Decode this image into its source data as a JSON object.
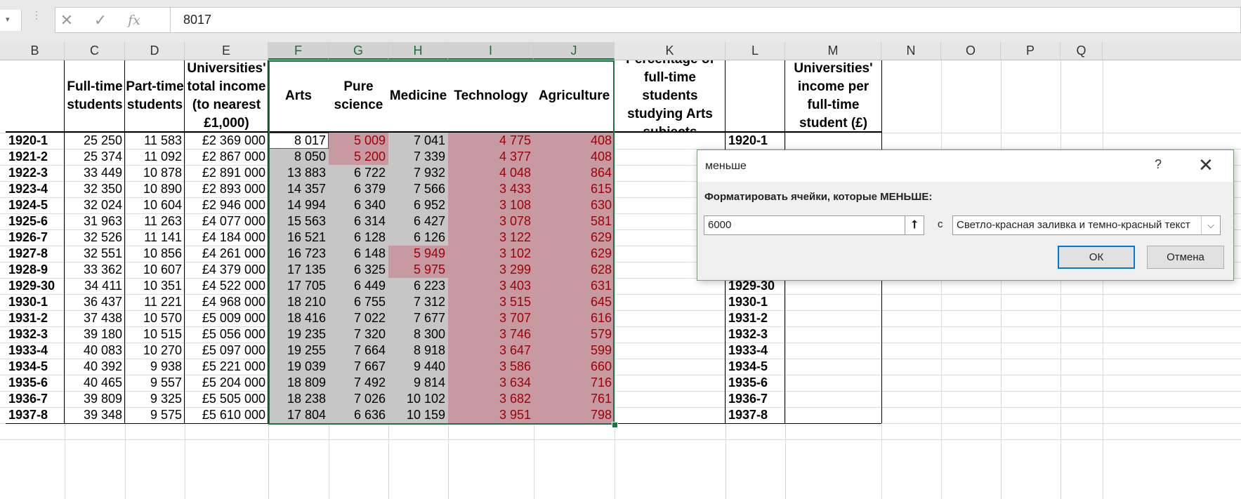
{
  "formula_bar": {
    "dots": "⋮",
    "cancel_glyph": "✕",
    "enter_glyph": "✓",
    "fx_glyph": "fx",
    "value": "8017"
  },
  "columns": [
    "B",
    "C",
    "D",
    "E",
    "F",
    "G",
    "H",
    "I",
    "J",
    "K",
    "L",
    "M",
    "N",
    "O",
    "P",
    "Q"
  ],
  "headers": {
    "B": "",
    "C": "Full-time students",
    "D": "Part-time students",
    "E": "Universities' total income (to nearest £1,000)",
    "F": "Arts",
    "G": "Pure science",
    "H": "Medicine",
    "I": "Technology",
    "J": "Agriculture",
    "K": "Percentage of full-time students studying Arts subjects",
    "L": "",
    "M": "Universities' income per full-time student (£)"
  },
  "rows": [
    {
      "year": "1920-1",
      "ft": "25 250",
      "pt": "11 583",
      "inc": "£2 369 000",
      "arts": "8 017",
      "sci": "5 009",
      "med": "7 041",
      "tech": "4 775",
      "agr": "408"
    },
    {
      "year": "1921-2",
      "ft": "25 374",
      "pt": "11 092",
      "inc": "£2 867 000",
      "arts": "8 050",
      "sci": "5 200",
      "med": "7 339",
      "tech": "4 377",
      "agr": "408"
    },
    {
      "year": "1922-3",
      "ft": "33 449",
      "pt": "10 878",
      "inc": "£2 891 000",
      "arts": "13 883",
      "sci": "6 722",
      "med": "7 932",
      "tech": "4 048",
      "agr": "864"
    },
    {
      "year": "1923-4",
      "ft": "32 350",
      "pt": "10 890",
      "inc": "£2 893 000",
      "arts": "14 357",
      "sci": "6 379",
      "med": "7 566",
      "tech": "3 433",
      "agr": "615"
    },
    {
      "year": "1924-5",
      "ft": "32 024",
      "pt": "10 604",
      "inc": "£2 946 000",
      "arts": "14 994",
      "sci": "6 340",
      "med": "6 952",
      "tech": "3 108",
      "agr": "630"
    },
    {
      "year": "1925-6",
      "ft": "31 963",
      "pt": "11 263",
      "inc": "£4 077 000",
      "arts": "15 563",
      "sci": "6 314",
      "med": "6 427",
      "tech": "3 078",
      "agr": "581"
    },
    {
      "year": "1926-7",
      "ft": "32 526",
      "pt": "11 141",
      "inc": "£4 184 000",
      "arts": "16 521",
      "sci": "6 128",
      "med": "6 126",
      "tech": "3 122",
      "agr": "629"
    },
    {
      "year": "1927-8",
      "ft": "32 551",
      "pt": "10 856",
      "inc": "£4 261 000",
      "arts": "16 723",
      "sci": "6 148",
      "med": "5 949",
      "tech": "3 102",
      "agr": "629"
    },
    {
      "year": "1928-9",
      "ft": "33 362",
      "pt": "10 607",
      "inc": "£4 379 000",
      "arts": "17 135",
      "sci": "6 325",
      "med": "5 975",
      "tech": "3 299",
      "agr": "628"
    },
    {
      "year": "1929-30",
      "ft": "34 411",
      "pt": "10 351",
      "inc": "£4 522 000",
      "arts": "17 705",
      "sci": "6 449",
      "med": "6 223",
      "tech": "3 403",
      "agr": "631"
    },
    {
      "year": "1930-1",
      "ft": "36 437",
      "pt": "11 221",
      "inc": "£4 968 000",
      "arts": "18 210",
      "sci": "6 755",
      "med": "7 312",
      "tech": "3 515",
      "agr": "645"
    },
    {
      "year": "1931-2",
      "ft": "37 438",
      "pt": "10 570",
      "inc": "£5 009 000",
      "arts": "18 416",
      "sci": "7 022",
      "med": "7 677",
      "tech": "3 707",
      "agr": "616"
    },
    {
      "year": "1932-3",
      "ft": "39 180",
      "pt": "10 515",
      "inc": "£5 056 000",
      "arts": "19 235",
      "sci": "7 320",
      "med": "8 300",
      "tech": "3 746",
      "agr": "579"
    },
    {
      "year": "1933-4",
      "ft": "40 083",
      "pt": "10 270",
      "inc": "£5 097 000",
      "arts": "19 255",
      "sci": "7 664",
      "med": "8 918",
      "tech": "3 647",
      "agr": "599"
    },
    {
      "year": "1934-5",
      "ft": "40 392",
      "pt": "9 938",
      "inc": "£5 221 000",
      "arts": "19 039",
      "sci": "7 667",
      "med": "9 440",
      "tech": "3 586",
      "agr": "660"
    },
    {
      "year": "1935-6",
      "ft": "40 465",
      "pt": "9 557",
      "inc": "£5 204 000",
      "arts": "18 809",
      "sci": "7 492",
      "med": "9 814",
      "tech": "3 634",
      "agr": "716"
    },
    {
      "year": "1936-7",
      "ft": "39 809",
      "pt": "9 325",
      "inc": "£5 505 000",
      "arts": "18 238",
      "sci": "7 026",
      "med": "10 102",
      "tech": "3 682",
      "agr": "761"
    },
    {
      "year": "1937-8",
      "ft": "39 348",
      "pt": "9 575",
      "inc": "£5 610 000",
      "arts": "17 804",
      "sci": "6 636",
      "med": "10 159",
      "tech": "3 951",
      "agr": "798"
    }
  ],
  "highlight_threshold": 6000,
  "colors": {
    "highlight_fill": "#c79aa2",
    "highlight_text": "#9c0006",
    "selection_fill": "#c6c6c6",
    "selection_border": "#217346"
  },
  "dialog": {
    "title": "меньше",
    "help": "?",
    "close": "✕",
    "prompt": "Форматировать ячейки, которые МЕНЬШЕ:",
    "input_value": "6000",
    "collapse_glyph": "⭡",
    "with_label": "с",
    "format_value": "Светло-красная заливка и темно-красный текст",
    "dropdown_glyph": "⌵",
    "ok_label": "ОК",
    "cancel_label": "Отмена"
  }
}
